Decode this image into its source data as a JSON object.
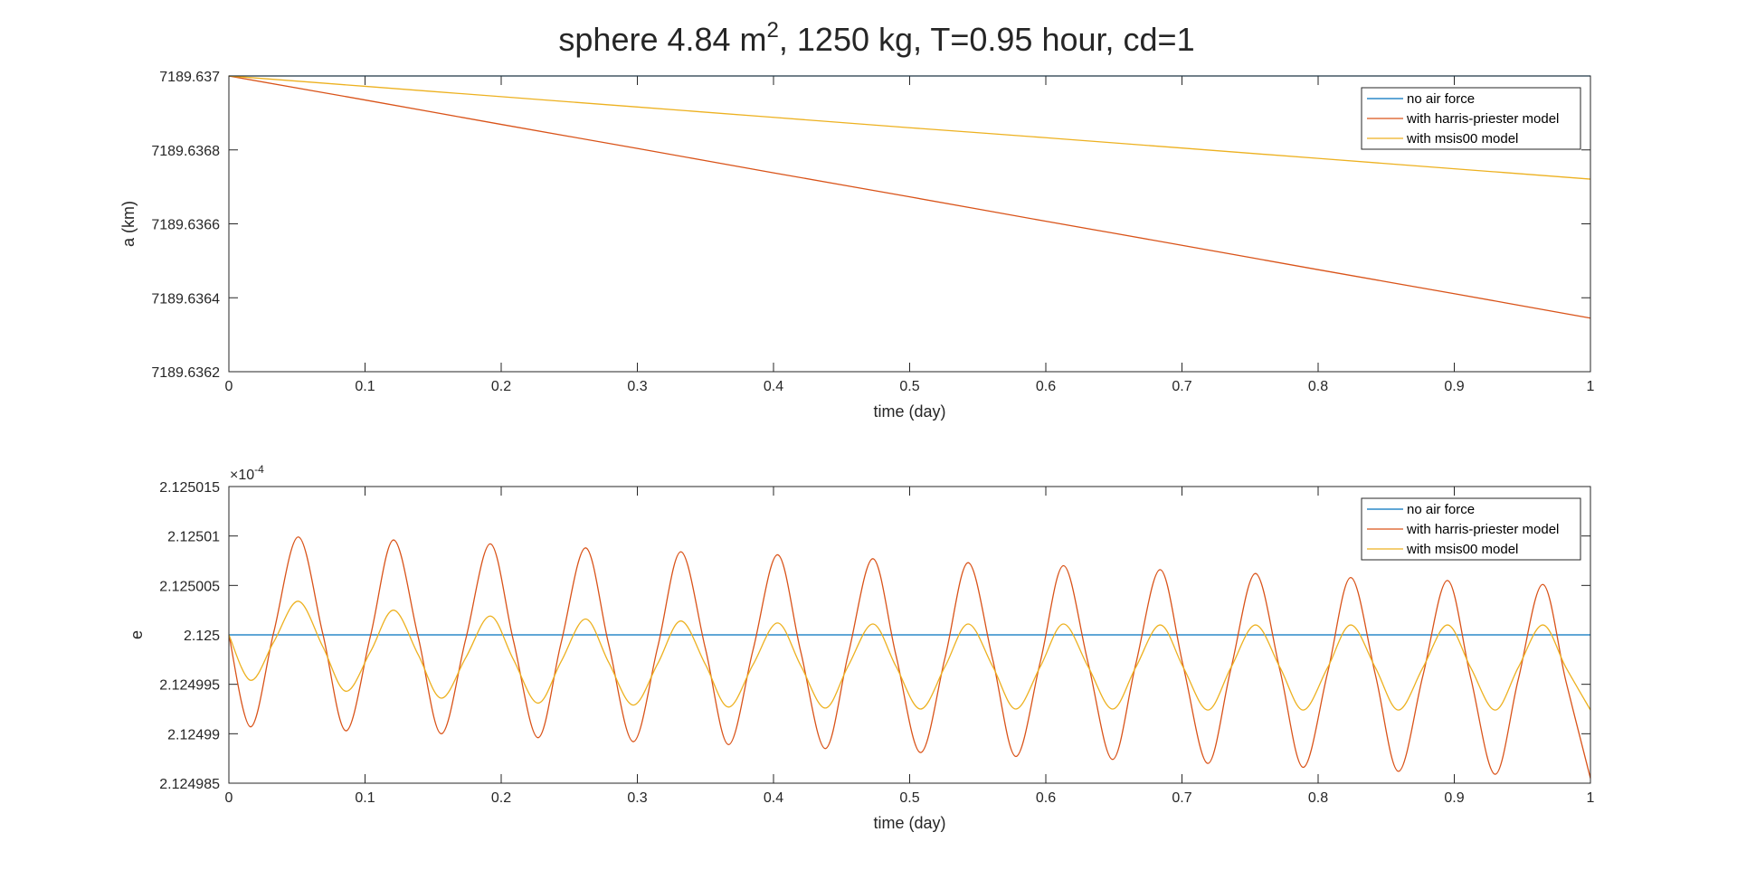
{
  "chart_data": [
    {
      "type": "line",
      "title": "sphere 4.84 m",
      "title_sup": "2",
      "title_rest": ", 1250 kg, T=0.95 hour, cd=1",
      "xlabel": "time (day)",
      "ylabel": "a (km)",
      "x": [
        0,
        0.1,
        0.2,
        0.3,
        0.4,
        0.5,
        0.6,
        0.7,
        0.8,
        0.9,
        1
      ],
      "series": [
        {
          "name": "no air force",
          "color": "#0072BD",
          "values": [
            7189.637,
            7189.637,
            7189.637,
            7189.637,
            7189.637,
            7189.637,
            7189.637,
            7189.637,
            7189.637,
            7189.637,
            7189.637
          ]
        },
        {
          "name": "with harris-priester model",
          "color": "#D95319",
          "values": [
            7189.637,
            7189.636935,
            7189.636869,
            7189.636804,
            7189.636738,
            7189.636673,
            7189.636607,
            7189.636542,
            7189.636476,
            7189.636411,
            7189.636345
          ]
        },
        {
          "name": "with msis00 model",
          "color": "#EDB120",
          "values": [
            7189.637,
            7189.636972,
            7189.636944,
            7189.636916,
            7189.636888,
            7189.63686,
            7189.636833,
            7189.636805,
            7189.636777,
            7189.636749,
            7189.636721
          ]
        }
      ],
      "xlim": [
        0,
        1
      ],
      "ylim": [
        7189.6362,
        7189.637
      ],
      "xticks": [
        0,
        0.1,
        0.2,
        0.3,
        0.4,
        0.5,
        0.6,
        0.7,
        0.8,
        0.9,
        1
      ],
      "yticks": [
        7189.6362,
        7189.6364,
        7189.6366,
        7189.6368,
        7189.637
      ],
      "legend": "upper right"
    },
    {
      "type": "line",
      "xlabel": "time (day)",
      "ylabel": "e",
      "y_exponent_base": "×10",
      "y_exponent": "-4",
      "x": [
        0,
        0.016,
        0.033,
        0.051,
        0.069,
        0.086,
        0.104,
        0.121,
        0.139,
        0.156,
        0.174,
        0.192,
        0.209,
        0.227,
        0.244,
        0.262,
        0.279,
        0.297,
        0.315,
        0.332,
        0.35,
        0.367,
        0.385,
        0.403,
        0.42,
        0.438,
        0.455,
        0.473,
        0.49,
        0.508,
        0.526,
        0.543,
        0.561,
        0.578,
        0.596,
        0.613,
        0.631,
        0.649,
        0.666,
        0.684,
        0.701,
        0.719,
        0.736,
        0.754,
        0.772,
        0.789,
        0.807,
        0.824,
        0.842,
        0.859,
        0.877,
        0.895,
        0.912,
        0.93,
        0.947,
        0.965,
        0.982,
        1
      ],
      "series": [
        {
          "name": "no air force",
          "color": "#0072BD",
          "values": [
            2.125,
            2.125,
            2.125,
            2.125,
            2.125,
            2.125,
            2.125,
            2.125,
            2.125,
            2.125,
            2.125,
            2.125,
            2.125,
            2.125,
            2.125,
            2.125,
            2.125,
            2.125,
            2.125,
            2.125,
            2.125,
            2.125,
            2.125,
            2.125,
            2.125,
            2.125,
            2.125,
            2.125,
            2.125,
            2.125,
            2.125,
            2.125,
            2.125,
            2.125,
            2.125,
            2.125,
            2.125,
            2.125,
            2.125,
            2.125,
            2.125,
            2.125,
            2.125,
            2.125,
            2.125,
            2.125,
            2.125,
            2.125,
            2.125,
            2.125,
            2.125,
            2.125,
            2.125,
            2.125,
            2.125,
            2.125,
            2.125,
            2.125
          ]
        },
        {
          "name": "with harris-priester model",
          "color": "#D95319",
          "values": [
            2.125,
            2.1249907,
            2.1250003,
            2.1250099,
            2.1250001,
            2.1249903,
            2.1249999,
            2.1250096,
            2.1249998,
            2.12499,
            2.1249996,
            2.1250092,
            2.1249994,
            2.1249896,
            2.1249992,
            2.1250088,
            2.124999,
            2.1249892,
            2.1249988,
            2.1250084,
            2.1249986,
            2.1249889,
            2.1249985,
            2.1250081,
            2.1249983,
            2.1249885,
            2.1249981,
            2.1250077,
            2.1249979,
            2.1249881,
            2.1249977,
            2.1250073,
            2.1249975,
            2.1249877,
            2.1249973,
            2.125007,
            2.1249972,
            2.1249874,
            2.124997,
            2.1250066,
            2.1249968,
            2.124987,
            2.1249966,
            2.1250062,
            2.1249964,
            2.1249866,
            2.1249962,
            2.1250058,
            2.124996,
            2.1249862,
            2.1249959,
            2.1250055,
            2.1249957,
            2.1249859,
            2.1249955,
            2.1250051,
            2.1249953,
            2.1249855
          ]
        },
        {
          "name": "with msis00 model",
          "color": "#EDB120",
          "values": [
            2.125,
            2.1249954,
            2.1249993,
            2.1250034,
            2.1249988,
            2.1249943,
            2.1249983,
            2.1250025,
            2.124998,
            2.1249936,
            2.1249977,
            2.1250019,
            2.1249975,
            2.1249931,
            2.1249973,
            2.1250016,
            2.1249972,
            2.1249929,
            2.1249971,
            2.1250014,
            2.124997,
            2.1249927,
            2.124997,
            2.1250012,
            2.1249969,
            2.1249926,
            2.1249969,
            2.1250011,
            2.1249968,
            2.1249925,
            2.1249968,
            2.1250011,
            2.1249968,
            2.1249925,
            2.1249968,
            2.1250011,
            2.1249968,
            2.1249925,
            2.1249967,
            2.125001,
            2.1249967,
            2.1249924,
            2.1249967,
            2.125001,
            2.1249967,
            2.1249924,
            2.1249967,
            2.125001,
            2.1249967,
            2.1249924,
            2.1249967,
            2.125001,
            2.1249967,
            2.1249924,
            2.1249967,
            2.125001,
            2.1249967,
            2.1249924
          ]
        }
      ],
      "xlim": [
        0,
        1
      ],
      "ylim": [
        2.124985,
        2.125015
      ],
      "xticks": [
        0,
        0.1,
        0.2,
        0.3,
        0.4,
        0.5,
        0.6,
        0.7,
        0.8,
        0.9,
        1
      ],
      "yticks": [
        2.124985,
        2.12499,
        2.124995,
        2.125,
        2.125005,
        2.12501,
        2.125015
      ],
      "legend": "upper right"
    }
  ]
}
